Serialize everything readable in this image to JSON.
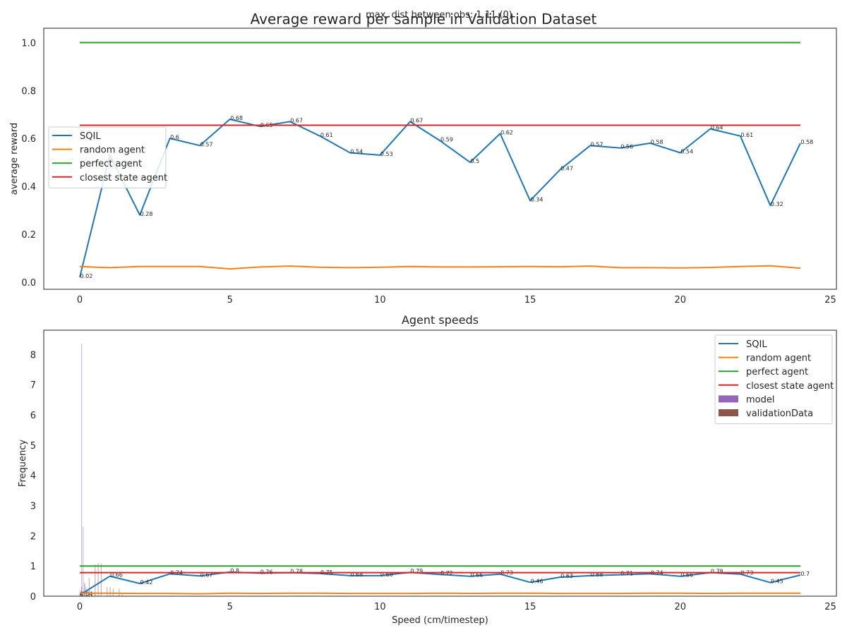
{
  "figure": {
    "suptitle": "Average reward per sample in Validation Dataset",
    "subtitle": "max. dist between obs: 1.11 (0)"
  },
  "chart_data": [
    {
      "type": "line",
      "title": "",
      "xlabel": "",
      "ylabel": "average reward",
      "xlim": [
        -1.2,
        25.2
      ],
      "ylim": [
        -0.03,
        1.06
      ],
      "xticks": [
        0,
        5,
        10,
        15,
        20,
        25
      ],
      "yticks": [
        0.0,
        0.2,
        0.4,
        0.6,
        0.8,
        1.0
      ],
      "ytick_labels": [
        "0.0",
        "0.2",
        "0.4",
        "0.6",
        "0.8",
        "1.0"
      ],
      "grid": false,
      "legend": "center-left",
      "x": [
        0,
        1,
        2,
        3,
        4,
        5,
        6,
        7,
        8,
        9,
        10,
        11,
        12,
        13,
        14,
        15,
        16,
        17,
        18,
        19,
        20,
        21,
        22,
        23,
        24
      ],
      "series": [
        {
          "name": "SQIL",
          "color": "#1f77b4",
          "values": [
            0.02,
            0.53,
            0.28,
            0.6,
            0.57,
            0.68,
            0.65,
            0.67,
            0.61,
            0.54,
            0.53,
            0.67,
            0.59,
            0.5,
            0.62,
            0.34,
            0.47,
            0.57,
            0.56,
            0.58,
            0.54,
            0.64,
            0.61,
            0.32,
            0.58
          ],
          "point_labels": [
            "0.02",
            "",
            "0.28",
            "0.6",
            "0.57",
            "0.68",
            "0.65",
            "0.67",
            "0.61",
            "0.54",
            "0.53",
            "0.67",
            "0.59",
            "0.5",
            "0.62",
            "0.34",
            "0.47",
            "0.57",
            "0.56",
            "0.58",
            "0.54",
            "0.64",
            "0.61",
            "0.32",
            "0.58"
          ]
        },
        {
          "name": "random agent",
          "color": "#ff7f0e",
          "values": [
            0.065,
            0.06,
            0.065,
            0.065,
            0.065,
            0.055,
            0.063,
            0.067,
            0.062,
            0.06,
            0.062,
            0.065,
            0.063,
            0.063,
            0.064,
            0.065,
            0.064,
            0.067,
            0.06,
            0.06,
            0.059,
            0.061,
            0.065,
            0.068,
            0.058
          ]
        },
        {
          "name": "perfect agent",
          "color": "#2ca02c",
          "values": [
            1,
            1,
            1,
            1,
            1,
            1,
            1,
            1,
            1,
            1,
            1,
            1,
            1,
            1,
            1,
            1,
            1,
            1,
            1,
            1,
            1,
            1,
            1,
            1,
            1
          ]
        },
        {
          "name": "closest state agent",
          "color": "#d62728",
          "values": [
            0.655,
            0.655,
            0.655,
            0.655,
            0.655,
            0.655,
            0.655,
            0.655,
            0.655,
            0.655,
            0.655,
            0.655,
            0.655,
            0.655,
            0.655,
            0.655,
            0.655,
            0.655,
            0.655,
            0.655,
            0.655,
            0.655,
            0.655,
            0.655,
            0.655
          ]
        }
      ]
    },
    {
      "type": "line",
      "title": "Agent speeds",
      "xlabel": "Speed (cm/timestep)",
      "ylabel": "Frequency",
      "xlim": [
        -1.2,
        25.2
      ],
      "ylim": [
        0,
        8.8
      ],
      "xticks": [
        0,
        5,
        10,
        15,
        20,
        25
      ],
      "yticks": [
        0,
        1,
        2,
        3,
        4,
        5,
        6,
        7,
        8
      ],
      "ytick_labels": [
        "0",
        "1",
        "2",
        "3",
        "4",
        "5",
        "6",
        "7",
        "8"
      ],
      "grid": false,
      "legend": "upper-right",
      "x": [
        0,
        1,
        2,
        3,
        4,
        5,
        6,
        7,
        8,
        9,
        10,
        11,
        12,
        13,
        14,
        15,
        16,
        17,
        18,
        19,
        20,
        21,
        22,
        23,
        24
      ],
      "series": [
        {
          "name": "SQIL",
          "color": "#1f77b4",
          "values": [
            0.04,
            0.66,
            0.42,
            0.74,
            0.67,
            0.8,
            0.76,
            0.78,
            0.75,
            0.68,
            0.68,
            0.79,
            0.72,
            0.66,
            0.73,
            0.46,
            0.63,
            0.68,
            0.71,
            0.74,
            0.66,
            0.78,
            0.73,
            0.45,
            0.7
          ],
          "point_labels": [
            "0.04",
            "0.66",
            "0.42",
            "0.74",
            "0.67",
            "0.8",
            "0.76",
            "0.78",
            "0.75",
            "0.68",
            "0.68",
            "0.79",
            "0.72",
            "0.66",
            "0.73",
            "0.46",
            "0.63",
            "0.68",
            "0.71",
            "0.74",
            "0.66",
            "0.78",
            "0.73",
            "0.45",
            "0.7"
          ]
        },
        {
          "name": "random agent",
          "color": "#ff7f0e",
          "values": [
            0.1,
            0.1,
            0.09,
            0.09,
            0.08,
            0.1,
            0.09,
            0.1,
            0.1,
            0.09,
            0.09,
            0.09,
            0.1,
            0.09,
            0.1,
            0.1,
            0.09,
            0.09,
            0.09,
            0.1,
            0.1,
            0.09,
            0.1,
            0.1,
            0.1
          ]
        },
        {
          "name": "perfect agent",
          "color": "#2ca02c",
          "values": [
            1,
            1,
            1,
            1,
            1,
            1,
            1,
            1,
            1,
            1,
            1,
            1,
            1,
            1,
            1,
            1,
            1,
            1,
            1,
            1,
            1,
            1,
            1,
            1,
            1
          ]
        },
        {
          "name": "closest state agent",
          "color": "#d62728",
          "values": [
            0.78,
            0.78,
            0.78,
            0.78,
            0.78,
            0.78,
            0.78,
            0.78,
            0.78,
            0.78,
            0.78,
            0.78,
            0.78,
            0.78,
            0.78,
            0.78,
            0.78,
            0.78,
            0.78,
            0.78,
            0.78,
            0.78,
            0.78,
            0.78,
            0.78
          ]
        }
      ],
      "histograms": [
        {
          "name": "model",
          "color": "#9467bd",
          "x": [
            0.0,
            0.05,
            0.1,
            0.15,
            0.2,
            0.3,
            0.4,
            0.5
          ],
          "values": [
            0.2,
            8.35,
            2.3,
            0.4,
            0.3,
            0.25,
            0.15,
            0.1
          ]
        },
        {
          "name": "validationData",
          "color": "#8c564b",
          "x": [
            0.05,
            0.15,
            0.3,
            0.5,
            0.6,
            0.7,
            0.9,
            1.0,
            1.1,
            1.3,
            1.4
          ],
          "values": [
            0.3,
            0.45,
            0.6,
            1.05,
            1.1,
            1.08,
            0.3,
            0.3,
            0.25,
            0.25,
            0.12
          ]
        }
      ]
    }
  ]
}
